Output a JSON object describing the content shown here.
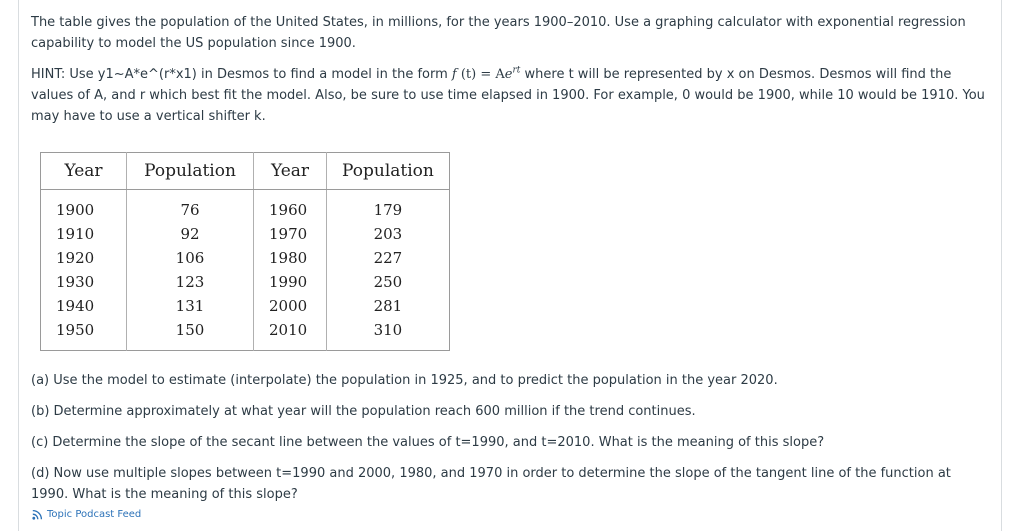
{
  "intro": {
    "text": "The table gives the population of the United States, in millions, for the years 1900–2010. Use a graphing calculator with exponential regression capability to model the US population since 1900."
  },
  "hint": {
    "before": "HINT:  Use y1~A*e^(r*x1) in Desmos to find a model in the form ",
    "fn": "f",
    "arg": "(t)",
    "eq": " = A",
    "base": "e",
    "exp": "rt",
    "after": " where t will be represented by x on Desmos.  Desmos will find the values of A, and r which best fit the model.  Also, be sure to use time elapsed in 1900.  For example, 0 would be 1900, while 10 would be 1910.  You may have to use a vertical shifter k."
  },
  "table": {
    "headers": [
      "Year",
      "Population",
      "Year",
      "Population"
    ],
    "rows": [
      [
        "1900",
        "76",
        "1960",
        "179"
      ],
      [
        "1910",
        "92",
        "1970",
        "203"
      ],
      [
        "1920",
        "106",
        "1980",
        "227"
      ],
      [
        "1930",
        "123",
        "1990",
        "250"
      ],
      [
        "1940",
        "131",
        "2000",
        "281"
      ],
      [
        "1950",
        "150",
        "2010",
        "310"
      ]
    ]
  },
  "questions": {
    "a": "(a) Use the model to estimate (interpolate) the population in 1925, and to predict the population in the year 2020.",
    "b": "(b) Determine approximately at what year will the population reach 600 million if the trend continues.",
    "c": "(c) Determine the slope of the secant line between the values of t=1990, and t=2010.  What is the meaning of this slope?",
    "d": "(d) Now use multiple slopes between t=1990 and 2000, 1980, and 1970 in order to determine the slope of the tangent line of the function at 1990.  What is the meaning of this slope?"
  },
  "footer": {
    "feed_icon": "rss-feed-icon",
    "feed_label": "Topic Podcast Feed"
  }
}
